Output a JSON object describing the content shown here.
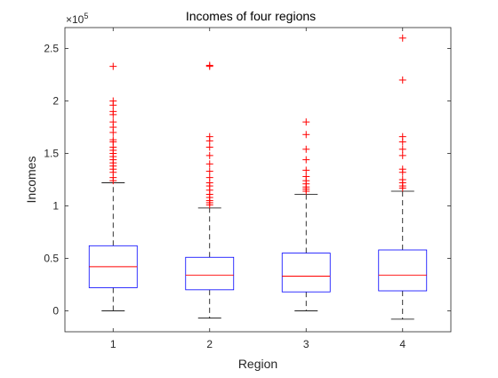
{
  "chart_data": {
    "type": "boxplot",
    "title": "Incomes of four regions",
    "xlabel": "Region",
    "ylabel": "Incomes",
    "y_exponent_label": "×10^5",
    "y_exponent_base": "×10",
    "y_exponent_power": "5",
    "ylim": [
      -20000,
      270000
    ],
    "yticks": [
      0,
      50000,
      100000,
      150000,
      200000,
      250000
    ],
    "ytick_labels": [
      "0",
      "0.5",
      "1",
      "1.5",
      "2",
      "2.5"
    ],
    "xlim": [
      0.5,
      4.5
    ],
    "categories": [
      "1",
      "2",
      "3",
      "4"
    ],
    "grid": false,
    "colors": {
      "box": "#0000ff",
      "median": "#ff0000",
      "whisker": "#000000",
      "outlier": "#ff0000",
      "axis": "#262626"
    },
    "boxes": [
      {
        "category": "1",
        "whisker_low": 0,
        "q1": 22000,
        "median": 42000,
        "q3": 62000,
        "whisker_high": 122000,
        "outliers": [
          124000,
          127000,
          132000,
          135000,
          138000,
          141000,
          144000,
          147000,
          150000,
          153000,
          156000,
          161000,
          163000,
          170000,
          175000,
          180000,
          187000,
          190000,
          196000,
          200000,
          233000
        ]
      },
      {
        "category": "2",
        "whisker_low": -7000,
        "q1": 20000,
        "median": 34000,
        "q3": 51000,
        "whisker_high": 98000,
        "outliers": [
          101000,
          103000,
          105000,
          108000,
          111000,
          115000,
          119000,
          122000,
          127000,
          133000,
          140000,
          148000,
          156000,
          162000,
          166000,
          233000,
          234000
        ]
      },
      {
        "category": "3",
        "whisker_low": 0,
        "q1": 18000,
        "median": 33000,
        "q3": 55000,
        "whisker_high": 111000,
        "outliers": [
          114000,
          116000,
          118000,
          121000,
          124000,
          128000,
          134000,
          144000,
          154000,
          168000,
          180000
        ]
      },
      {
        "category": "4",
        "whisker_low": -8000,
        "q1": 19000,
        "median": 34000,
        "q3": 58000,
        "whisker_high": 114000,
        "outliers": [
          117000,
          119000,
          122000,
          125000,
          132000,
          135000,
          148000,
          154000,
          161000,
          166000,
          220000,
          260000
        ]
      }
    ]
  }
}
